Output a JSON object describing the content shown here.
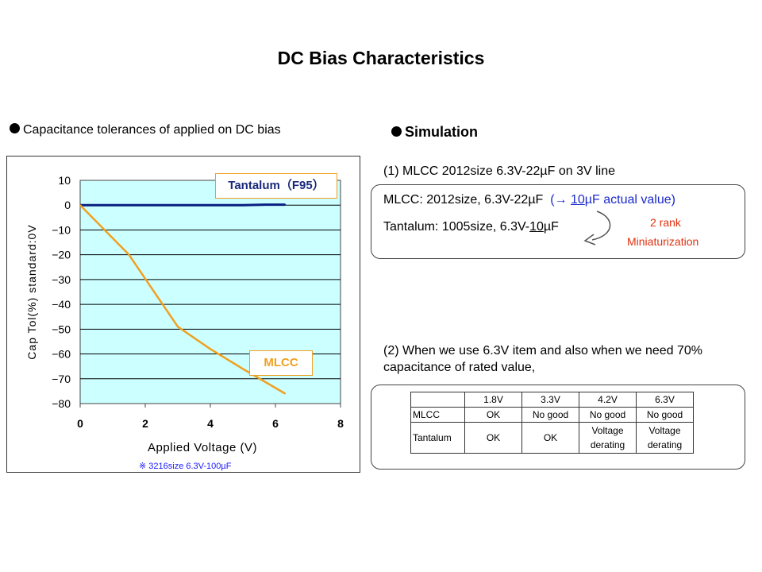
{
  "title": "DC Bias Characteristics",
  "left_heading": "Capacitance tolerances of applied on DC bias",
  "right_heading": "Simulation",
  "chart_data": {
    "type": "line",
    "ylabel": "Cap Tol(%) standard:0V",
    "xlabel": "Applied Voltage (V)",
    "xlim": [
      0,
      8
    ],
    "ylim": [
      -80,
      10
    ],
    "x_ticks": [
      "0",
      "2",
      "4",
      "6",
      "8"
    ],
    "y_ticks": [
      "10",
      "0",
      "−10",
      "−20",
      "−30",
      "−40",
      "−50",
      "−60",
      "−70",
      "−80"
    ],
    "grid": true,
    "plot_background": "#ccffff",
    "series": [
      {
        "name": "Tantalum(F95)",
        "color": "#0a1f80",
        "x": [
          0,
          1,
          2,
          3,
          4,
          5,
          5.7,
          6.3
        ],
        "y": [
          0,
          0,
          0,
          0,
          0,
          0,
          0.2,
          0.2
        ]
      },
      {
        "name": "MLCC",
        "color": "#f0a020",
        "x": [
          0,
          1.5,
          3,
          4,
          5,
          6.3
        ],
        "y": [
          0,
          -20,
          -49,
          -58,
          -66,
          -76
        ]
      }
    ],
    "annotations": {
      "tantalum_label": "Tantalum（F95）",
      "mlcc_label": "MLCC"
    },
    "footnote": "※  3216size  6.3V-100µF"
  },
  "simulation": {
    "sec1_label": "(1) MLCC 2012size 6.3V-22µF on 3V line",
    "mlcc_line_prefix": "MLCC: 2012size, 6.3V-22µF",
    "mlcc_line_arrow_open": "(→ ",
    "mlcc_line_value": "10",
    "mlcc_line_rest": "µF actual value)",
    "tant_line_prefix": "Tantalum: 1005size, 6.3V-",
    "tant_line_value": "10",
    "tant_line_unit": "µF",
    "rank_label": "2 rank",
    "mini_label": "Miniaturization",
    "sec2_label": "(2) When we use 6.3V item and also when we need 70% capacitance of rated value,"
  },
  "table": {
    "headers": [
      "",
      "1.8V",
      "3.3V",
      "4.2V",
      "6.3V"
    ],
    "rows": [
      {
        "name": "MLCC",
        "cells": [
          "OK",
          "No good",
          "No good",
          "No good"
        ]
      },
      {
        "name": "Tantalum",
        "cells": [
          "OK",
          "OK",
          "Voltage derating",
          "Voltage derating"
        ]
      }
    ]
  },
  "colors": {
    "mlcc": "#f0a020",
    "tantalum": "#0a1f80",
    "note_red": "#e03010",
    "note_blue": "#1a2acc"
  }
}
